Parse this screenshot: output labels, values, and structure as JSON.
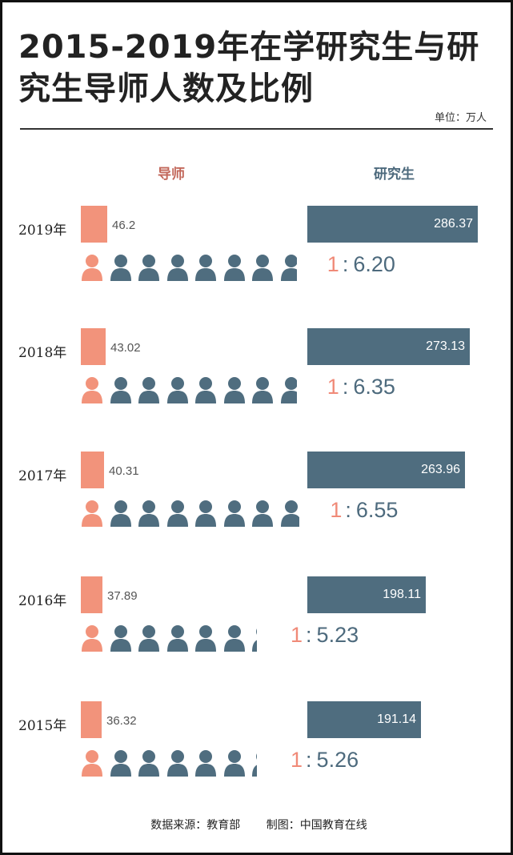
{
  "title": "2015-2019年在学研究生与研究生导师人数及比例",
  "unit": "单位：万人",
  "headers": {
    "tutor": "导师",
    "student": "研究生"
  },
  "colors": {
    "tutor": "#f2937b",
    "student": "#4f6d7f",
    "ratio_one": "#f08a78"
  },
  "chart_data": {
    "type": "bar",
    "title": "2015-2019年在学研究生与研究生导师人数及比例",
    "unit": "万人",
    "categories": [
      "2019年",
      "2018年",
      "2017年",
      "2016年",
      "2015年"
    ],
    "series": [
      {
        "name": "导师",
        "values": [
          46.2,
          43.02,
          40.31,
          37.89,
          36.32
        ]
      },
      {
        "name": "研究生",
        "values": [
          286.37,
          273.13,
          263.96,
          198.11,
          191.14
        ]
      }
    ],
    "ratios": [
      6.2,
      6.35,
      6.55,
      5.23,
      5.26
    ]
  },
  "rows": [
    {
      "year": "2019年",
      "tutor": "46.2",
      "student": "286.37",
      "ratio_one": "1",
      "ratio_colon": ":",
      "ratio_value": "6.20",
      "icons": 7.6
    },
    {
      "year": "2018年",
      "tutor": "43.02",
      "student": "273.13",
      "ratio_one": "1",
      "ratio_colon": ":",
      "ratio_value": "6.35",
      "icons": 7.6
    },
    {
      "year": "2017年",
      "tutor": "40.31",
      "student": "263.96",
      "ratio_one": "1",
      "ratio_colon": ":",
      "ratio_value": "6.55",
      "icons": 7.7
    },
    {
      "year": "2016年",
      "tutor": "37.89",
      "student": "198.11",
      "ratio_one": "1",
      "ratio_colon": ":",
      "ratio_value": "5.23",
      "icons": 6.2
    },
    {
      "year": "2015年",
      "tutor": "36.32",
      "student": "191.14",
      "ratio_one": "1",
      "ratio_colon": ":",
      "ratio_value": "5.26",
      "icons": 6.2
    }
  ],
  "footer": {
    "source": "数据来源：教育部",
    "maker": "制图：中国教育在线"
  }
}
